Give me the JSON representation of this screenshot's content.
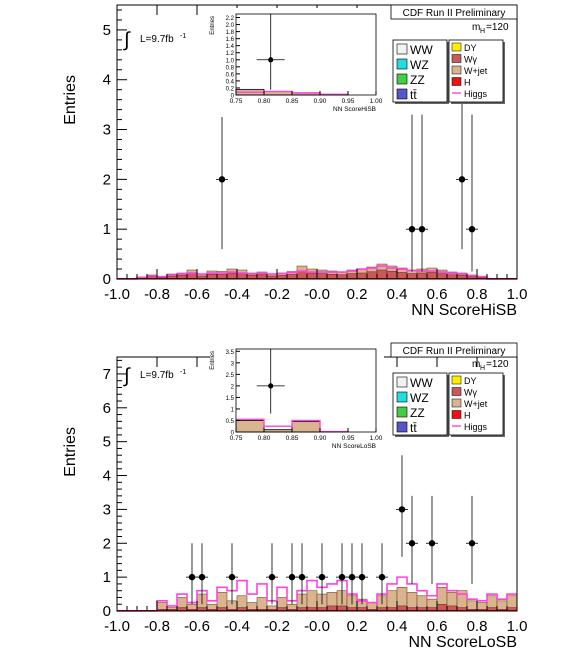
{
  "chart_data": [
    {
      "type": "bar",
      "panel": "top",
      "xlabel": "NN ScoreHiSB",
      "ylabel": "Entries",
      "header": "CDF Run II Preliminary",
      "lumi_text": "L=9.7fb",
      "lumi_sup": "-1",
      "mass_label": "m",
      "mass_sub": "H",
      "mass_value": "=120",
      "xlim": [
        -1.0,
        1.0
      ],
      "ylim": [
        0,
        5.5
      ],
      "xticks": [
        "-1.0",
        "-0.8",
        "-0.6",
        "-0.4",
        "-0.2",
        "-0.0",
        "0.2",
        "0.4",
        "0.6",
        "0.8",
        "1.0"
      ],
      "yticks": [
        "0",
        "1",
        "2",
        "3",
        "4",
        "5"
      ],
      "grid": false,
      "legend_left": [
        "WW",
        "WZ",
        "ZZ",
        "tt̄"
      ],
      "legend_right": [
        "DY",
        "Wγ",
        "W+jet",
        "H",
        "Higgs"
      ],
      "bin_width": 0.05,
      "stack_total": [
        0,
        0,
        0.04,
        0.08,
        0.05,
        0.1,
        0.12,
        0.18,
        0.1,
        0.16,
        0.15,
        0.2,
        0.18,
        0.12,
        0.14,
        0.1,
        0.12,
        0.15,
        0.26,
        0.2,
        0.18,
        0.16,
        0.14,
        0.18,
        0.2,
        0.24,
        0.3,
        0.26,
        0.22,
        0.18,
        0.2,
        0.22,
        0.18,
        0.14,
        0.12,
        0.08,
        0.05,
        0,
        0,
        0
      ],
      "higgs": [
        0,
        0,
        0.03,
        0.06,
        0.05,
        0.08,
        0.1,
        0.12,
        0.1,
        0.12,
        0.12,
        0.14,
        0.12,
        0.1,
        0.11,
        0.1,
        0.11,
        0.13,
        0.16,
        0.14,
        0.14,
        0.14,
        0.14,
        0.16,
        0.2,
        0.22,
        0.26,
        0.22,
        0.2,
        0.17,
        0.16,
        0.16,
        0.14,
        0.12,
        0.1,
        0.07,
        0.05,
        0,
        0,
        0
      ],
      "data_points": [
        {
          "x": -0.475,
          "y": 2,
          "ylo": 0.6,
          "yhi": 4.7
        },
        {
          "x": 0.475,
          "y": 1,
          "ylo": 0.15,
          "yhi": 3.3
        },
        {
          "x": 0.525,
          "y": 1,
          "ylo": 0.15,
          "yhi": 3.3
        },
        {
          "x": 0.725,
          "y": 2,
          "ylo": 0.6,
          "yhi": 4.7
        },
        {
          "x": 0.775,
          "y": 1,
          "ylo": 0.15,
          "yhi": 3.3
        }
      ],
      "inset": {
        "xlabel": "NN ScoreHiSB",
        "ylabel": "Entries",
        "xlim": [
          0.75,
          1.0
        ],
        "ylim": [
          0,
          2.3
        ],
        "xticks": [
          "0.75",
          "0.80",
          "0.85",
          "0.90",
          "0.95",
          "1.00"
        ],
        "yticks": [
          "0",
          "0.2",
          "0.4",
          "0.6",
          "0.8",
          "1.0",
          "1.2",
          "1.4",
          "1.6",
          "1.8",
          "2.0",
          "2.2"
        ],
        "bins": [
          0.75,
          0.8,
          0.85,
          0.9,
          0.95
        ],
        "stack_total": [
          0.16,
          0.1,
          0.06,
          0.02
        ],
        "higgs": [
          0.08,
          0.1,
          0.06,
          0.02
        ],
        "data_points": [
          {
            "x": 0.812,
            "y": 1,
            "ylo": 0.15,
            "yhi": 2.3
          }
        ]
      }
    },
    {
      "type": "bar",
      "panel": "bottom",
      "xlabel": "NN ScoreLoSB",
      "ylabel": "Entries",
      "header": "CDF Run II Preliminary",
      "lumi_text": "L=9.7fb",
      "lumi_sup": "-1",
      "mass_label": "m",
      "mass_sub": "H",
      "mass_value": "=120",
      "xlim": [
        -1.0,
        1.0
      ],
      "ylim": [
        0,
        7.5
      ],
      "xticks": [
        "-1.0",
        "-0.8",
        "-0.6",
        "-0.4",
        "-0.2",
        "-0.0",
        "0.2",
        "0.4",
        "0.6",
        "0.8",
        "1.0"
      ],
      "yticks": [
        "0",
        "1",
        "2",
        "3",
        "4",
        "5",
        "6",
        "7"
      ],
      "grid": false,
      "legend_left": [
        "WW",
        "WZ",
        "ZZ",
        "tt̄"
      ],
      "legend_right": [
        "DY",
        "Wγ",
        "W+jet",
        "H",
        "Higgs"
      ],
      "bin_width": 0.05,
      "stack_total": [
        0,
        0,
        0,
        0,
        0.25,
        0.1,
        0.4,
        0.2,
        0.5,
        0.2,
        0.55,
        0.3,
        0.45,
        0.25,
        0.4,
        0.15,
        0.4,
        0.2,
        0.5,
        0.6,
        0.5,
        0.55,
        0.6,
        0.45,
        0.35,
        0.25,
        0.45,
        0.6,
        0.7,
        0.55,
        0.45,
        0.35,
        0.7,
        0.55,
        0.6,
        0.3,
        0.25,
        0.45,
        0.3,
        0.45
      ],
      "higgs": [
        0,
        0,
        0,
        0,
        0.3,
        0.15,
        0.5,
        0.25,
        0.6,
        0.3,
        0.7,
        0.6,
        0.9,
        0.5,
        0.8,
        0.3,
        0.7,
        0.3,
        0.6,
        0.9,
        0.7,
        0.8,
        0.9,
        0.5,
        0.3,
        0.25,
        0.5,
        0.8,
        1.0,
        0.8,
        0.6,
        0.45,
        0.8,
        0.6,
        0.5,
        0.35,
        0.3,
        0.5,
        0.35,
        0.5
      ],
      "red_bars": [
        0,
        0,
        0,
        0,
        0.05,
        0.05,
        0.1,
        0.05,
        0.1,
        0.05,
        0.1,
        0.05,
        0.1,
        0.05,
        0.05,
        0.05,
        0.1,
        0.05,
        0.1,
        0.1,
        0.1,
        0.15,
        0.15,
        0.1,
        0.1,
        0.05,
        0.1,
        0.1,
        0.15,
        0.1,
        0.1,
        0.1,
        0.2,
        0.15,
        0.1,
        0.05,
        0.05,
        0.1,
        0.05,
        0.1
      ],
      "data_points": [
        {
          "x": -0.625,
          "y": 1,
          "ylo": 0.2,
          "yhi": 2
        },
        {
          "x": -0.575,
          "y": 1,
          "ylo": 0.2,
          "yhi": 2
        },
        {
          "x": -0.425,
          "y": 1,
          "ylo": 0.2,
          "yhi": 2
        },
        {
          "x": -0.225,
          "y": 1,
          "ylo": 0.2,
          "yhi": 2
        },
        {
          "x": -0.125,
          "y": 1,
          "ylo": 0.2,
          "yhi": 2
        },
        {
          "x": -0.075,
          "y": 1,
          "ylo": 0.2,
          "yhi": 2
        },
        {
          "x": 0.025,
          "y": 1,
          "ylo": 0.2,
          "yhi": 2
        },
        {
          "x": 0.125,
          "y": 1,
          "ylo": 0.2,
          "yhi": 2
        },
        {
          "x": 0.175,
          "y": 1,
          "ylo": 0.2,
          "yhi": 2
        },
        {
          "x": 0.225,
          "y": 1,
          "ylo": 0.2,
          "yhi": 2
        },
        {
          "x": 0.325,
          "y": 1,
          "ylo": 0.2,
          "yhi": 2
        },
        {
          "x": 0.425,
          "y": 3,
          "ylo": 1.6,
          "yhi": 4.6
        },
        {
          "x": 0.475,
          "y": 2,
          "ylo": 0.8,
          "yhi": 3.4
        },
        {
          "x": 0.575,
          "y": 2,
          "ylo": 0.8,
          "yhi": 3.4
        },
        {
          "x": 0.775,
          "y": 2,
          "ylo": 0.8,
          "yhi": 3.4
        }
      ],
      "inset": {
        "xlabel": "NN ScoreLoSB",
        "ylabel": "Entries",
        "xlim": [
          0.75,
          1.0
        ],
        "ylim": [
          0,
          3.6
        ],
        "xticks": [
          "0.75",
          "0.80",
          "0.85",
          "0.90",
          "0.95",
          "1.00"
        ],
        "yticks": [
          "0",
          "0.5",
          "1",
          "1.5",
          "2",
          "2.5",
          "3",
          "3.5"
        ],
        "bins": [
          0.75,
          0.8,
          0.85,
          0.9,
          0.95
        ],
        "stack_total": [
          0.5,
          0.1,
          0.45,
          0.02
        ],
        "higgs": [
          0.55,
          0.25,
          0.5,
          0.02
        ],
        "data_points": [
          {
            "x": 0.812,
            "y": 2,
            "ylo": 0.8,
            "yhi": 3.6
          }
        ]
      }
    }
  ],
  "colors": {
    "ww": "#f2f2f2",
    "wz": "#22dddd",
    "zz": "#44cc44",
    "tt": "#5555cc",
    "dy": "#ffee00",
    "wgamma": "#c85a5a",
    "wjet": "#d9b48f",
    "h": "#ee1111",
    "higgs": "#ff44dd",
    "stack": "#d9b48f",
    "stack_red": "#c85a5a"
  }
}
